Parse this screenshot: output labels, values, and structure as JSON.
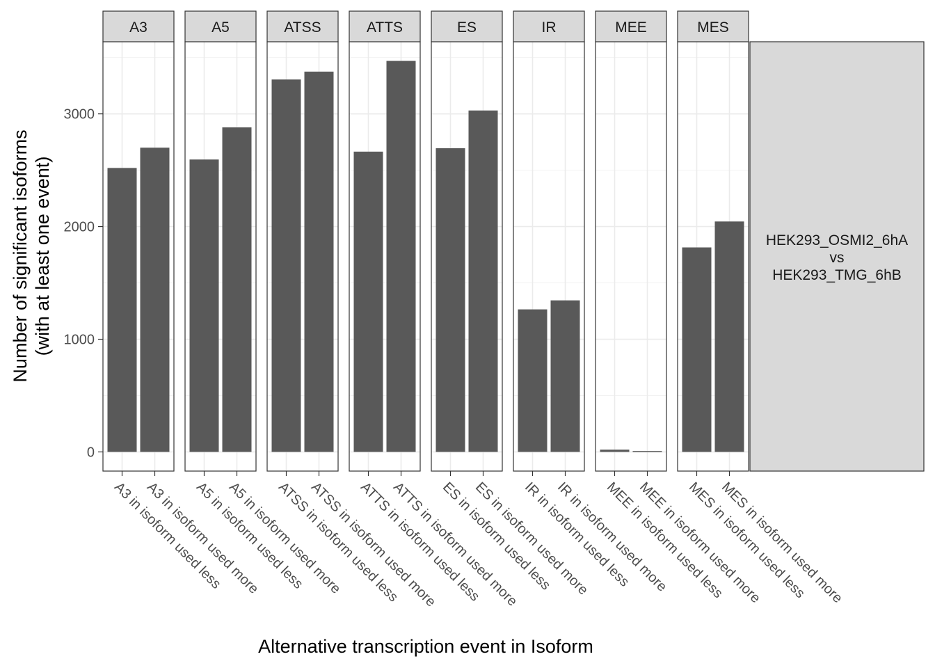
{
  "chart_data": {
    "type": "bar",
    "xlabel": "Alternative transcription event in Isoform",
    "ylabel": [
      "Number of significant isoforms",
      "(with at least one event)"
    ],
    "ylim": [
      -170,
      3640
    ],
    "yticks": [
      0,
      1000,
      2000,
      3000
    ],
    "grid": true,
    "side_strip": [
      "HEK293_OSMI2_6hA",
      "vs",
      "HEK293_TMG_6hB"
    ],
    "panels": [
      {
        "label": "A3",
        "categories": [
          "A3 in isoform used less",
          "A3 in isoform used more"
        ],
        "values": [
          2520,
          2700
        ]
      },
      {
        "label": "A5",
        "categories": [
          "A5 in isoform used less",
          "A5 in isoform used more"
        ],
        "values": [
          2595,
          2880
        ]
      },
      {
        "label": "ATSS",
        "categories": [
          "ATSS in isoform used less",
          "ATSS in isoform used more"
        ],
        "values": [
          3305,
          3375
        ]
      },
      {
        "label": "ATTS",
        "categories": [
          "ATTS in isoform used less",
          "ATTS in isoform used more"
        ],
        "values": [
          2665,
          3470
        ]
      },
      {
        "label": "ES",
        "categories": [
          "ES in isoform used less",
          "ES in isoform used more"
        ],
        "values": [
          2695,
          3030
        ]
      },
      {
        "label": "IR",
        "categories": [
          "IR in isoform used less",
          "IR in isoform used more"
        ],
        "values": [
          1265,
          1345
        ]
      },
      {
        "label": "MEE",
        "categories": [
          "MEE in isoform used less",
          "MEE in isoform used more"
        ],
        "values": [
          20,
          8
        ]
      },
      {
        "label": "MES",
        "categories": [
          "MES in isoform used less",
          "MES in isoform used more"
        ],
        "values": [
          1815,
          2045
        ]
      }
    ]
  }
}
